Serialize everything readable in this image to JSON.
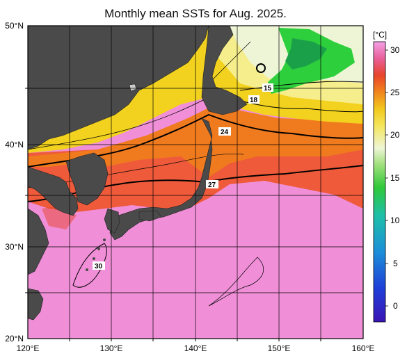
{
  "title": "Monthly mean SSTs for Aug. 2025.",
  "lat_labels": [
    "50°N",
    "40°N",
    "30°N",
    "20°N"
  ],
  "lon_labels": [
    "120°E",
    "130°E",
    "140°E",
    "150°E",
    "160°E"
  ],
  "colorbar": {
    "unit": "[°C]",
    "ticks": [
      "30",
      "25",
      "20",
      "15",
      "10",
      "5",
      "0"
    ]
  },
  "isotherm_labels": [
    "15",
    "18",
    "24",
    "27",
    "30"
  ],
  "colors": {
    "land": "#4a4a4a",
    "warm_pink": "#f08fd8",
    "red": "#e8452a",
    "orange": "#f07a1e",
    "yellow": "#f2d21e",
    "light_yellow": "#f6ee8c",
    "pale": "#eef5d6",
    "green": "#2ecf3c"
  }
}
